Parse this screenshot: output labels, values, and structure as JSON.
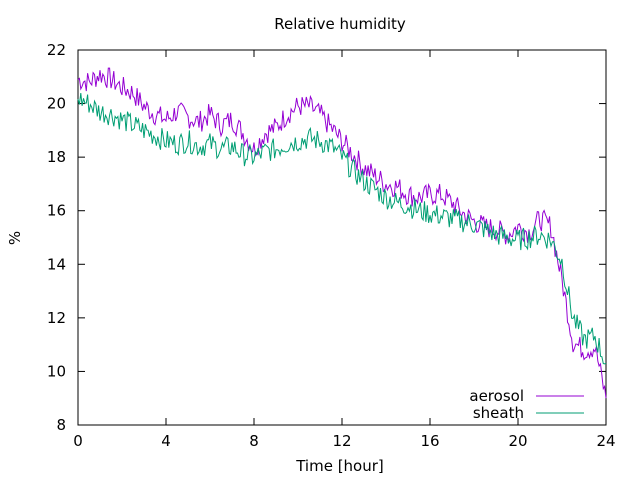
{
  "chart_data": {
    "type": "line",
    "title": "Relative humidity",
    "xlabel": "Time [hour]",
    "ylabel": "%",
    "xlim": [
      0,
      24
    ],
    "ylim": [
      8,
      22
    ],
    "x_ticks": [
      0,
      4,
      8,
      12,
      16,
      20,
      24
    ],
    "y_ticks": [
      8,
      10,
      12,
      14,
      16,
      18,
      20,
      22
    ],
    "grid": false,
    "legend_position": "bottom-right",
    "series": [
      {
        "name": "aerosol",
        "color": "#9400d3",
        "x": [
          0,
          0.5,
          1,
          1.5,
          2,
          2.5,
          3,
          3.5,
          4,
          4.5,
          5,
          5.5,
          6,
          6.5,
          7,
          7.5,
          8,
          8.5,
          9,
          9.5,
          10,
          10.5,
          11,
          11.5,
          12,
          12.5,
          13,
          13.5,
          14,
          14.5,
          15,
          15.5,
          16,
          16.5,
          17,
          17.5,
          18,
          18.5,
          19,
          19.5,
          20,
          20.5,
          21,
          21.5,
          22,
          22.5,
          23,
          23.5,
          24
        ],
        "y": [
          20.9,
          20.8,
          21.1,
          20.9,
          20.6,
          20.4,
          19.9,
          19.6,
          19.4,
          19.7,
          19.5,
          19.3,
          19.6,
          19.2,
          19.4,
          18.9,
          18.3,
          18.9,
          19.1,
          19.6,
          19.9,
          19.9,
          19.6,
          19.1,
          18.6,
          18.1,
          17.6,
          17.3,
          17.0,
          16.9,
          16.6,
          16.5,
          16.6,
          16.6,
          16.3,
          15.9,
          15.6,
          15.4,
          15.3,
          15.1,
          15.4,
          15.2,
          15.7,
          15.4,
          13.4,
          11.1,
          10.8,
          10.9,
          9.0
        ]
      },
      {
        "name": "sheath",
        "color": "#009e73",
        "x": [
          0,
          0.5,
          1,
          1.5,
          2,
          2.5,
          3,
          3.5,
          4,
          4.5,
          5,
          5.5,
          6,
          6.5,
          7,
          7.5,
          8,
          8.5,
          9,
          9.5,
          10,
          10.5,
          11,
          11.5,
          12,
          12.5,
          13,
          13.5,
          14,
          14.5,
          15,
          15.5,
          16,
          16.5,
          17,
          17.5,
          18,
          18.5,
          19,
          19.5,
          20,
          20.5,
          21,
          21.5,
          22,
          22.5,
          23,
          23.5,
          24
        ],
        "y": [
          20.2,
          20.0,
          19.7,
          19.6,
          19.4,
          19.2,
          19.0,
          18.8,
          18.6,
          18.5,
          18.6,
          18.4,
          18.5,
          18.3,
          18.4,
          18.1,
          18.0,
          18.2,
          18.3,
          18.5,
          18.6,
          18.7,
          18.6,
          18.4,
          18.0,
          17.5,
          17.1,
          16.8,
          16.5,
          16.3,
          16.2,
          16.0,
          15.9,
          15.8,
          15.7,
          15.6,
          15.5,
          15.3,
          15.1,
          15.0,
          14.9,
          15.0,
          15.1,
          14.9,
          14.1,
          12.0,
          11.2,
          11.3,
          10.3
        ]
      }
    ]
  }
}
